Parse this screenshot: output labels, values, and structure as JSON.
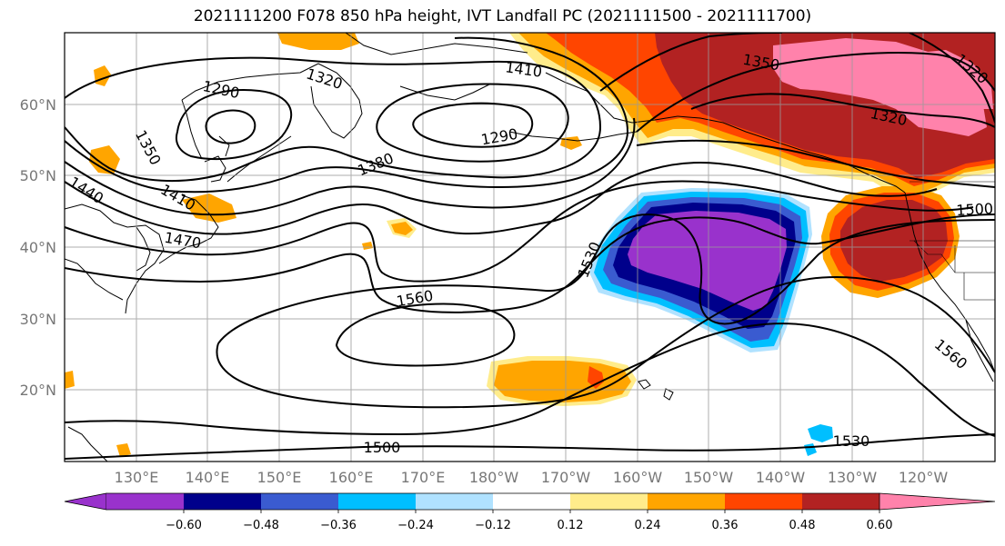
{
  "title": "2021111200 F078 850 hPa height, IVT Landfall PC (2021111500 - 2021111700)",
  "lat_labels": [
    "60°N",
    "50°N",
    "40°N",
    "30°N",
    "20°N"
  ],
  "lon_labels": [
    "130°E",
    "140°E",
    "150°E",
    "160°E",
    "170°E",
    "180°W",
    "170°W",
    "160°W",
    "150°W",
    "140°W",
    "130°W",
    "120°W"
  ],
  "contour_labels": [
    "1290",
    "1320",
    "1410",
    "1350",
    "1320",
    "1290",
    "1380",
    "1350",
    "1440",
    "1410",
    "1470",
    "1500",
    "1530",
    "1560",
    "1560",
    "1500",
    "1530",
    "1320"
  ],
  "colorbar": {
    "ticks": [
      "−0.60",
      "−0.48",
      "−0.36",
      "−0.24",
      "−0.12",
      "0.12",
      "0.24",
      "0.36",
      "0.48",
      "0.60"
    ],
    "colors": [
      "#9932cc",
      "#00008b",
      "#3a5bd0",
      "#00bfff",
      "#b0e2ff",
      "#ffffff",
      "#ffec8b",
      "#ffa500",
      "#ff4500",
      "#b22222",
      "#ff82ab"
    ]
  },
  "colors": {
    "neg_strong": "#9932cc",
    "neg_navy": "#00008b",
    "neg_mid": "#3a5bd0",
    "neg_light": "#00bfff",
    "neg_pale": "#b0e2ff",
    "pos_pale": "#ffec8b",
    "pos_orange": "#ffa500",
    "pos_red": "#ff4500",
    "pos_dark": "#b22222",
    "pos_pink": "#ff82ab"
  }
}
